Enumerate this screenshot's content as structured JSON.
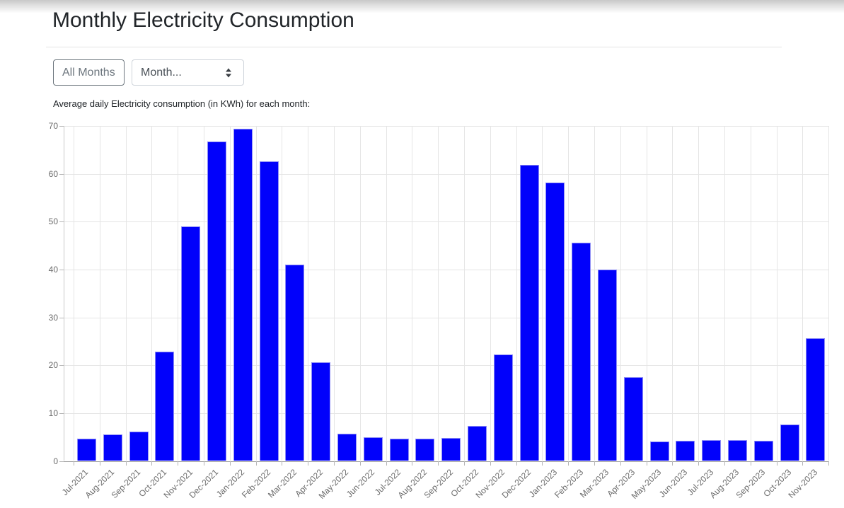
{
  "header": {
    "title": "Monthly Electricity Consumption"
  },
  "controls": {
    "all_months_label": "All Months",
    "month_select_value": "Month...",
    "month_select_icon": "up-down-arrows-icon"
  },
  "chart_data": {
    "type": "bar",
    "title": "Average daily Electricity consumption (in KWh) for each month:",
    "categories": [
      "Jul-2021",
      "Aug-2021",
      "Sep-2021",
      "Oct-2021",
      "Nov-2021",
      "Dec-2021",
      "Jan-2022",
      "Feb-2022",
      "Mar-2022",
      "Apr-2022",
      "May-2022",
      "Jun-2022",
      "Jul-2022",
      "Aug-2022",
      "Sep-2022",
      "Oct-2022",
      "Nov-2022",
      "Dec-2022",
      "Jan-2023",
      "Feb-2023",
      "Mar-2023",
      "Apr-2023",
      "May-2023",
      "Jun-2023",
      "Jul-2023",
      "Aug-2023",
      "Sep-2023",
      "Oct-2023",
      "Nov-2023"
    ],
    "values": [
      4.7,
      5.5,
      6.2,
      22.8,
      49.0,
      66.8,
      69.5,
      62.7,
      41.1,
      20.6,
      5.7,
      4.9,
      4.6,
      4.6,
      4.8,
      7.3,
      22.2,
      61.9,
      58.2,
      45.6,
      40.0,
      17.5,
      4.1,
      4.2,
      4.4,
      4.3,
      4.2,
      7.6,
      25.6
    ],
    "xlabel": "",
    "ylabel": "",
    "ylim": [
      0,
      70
    ],
    "yticks": [
      0,
      10,
      20,
      30,
      40,
      50,
      60,
      70
    ],
    "grid": true,
    "legend": false,
    "bar_color": "#0101fb",
    "bar_border_color": "#8d8df5",
    "grid_color": "#e5e5e5",
    "axis_color": "#9b9b9b",
    "label_color": "#6b6b6b"
  }
}
